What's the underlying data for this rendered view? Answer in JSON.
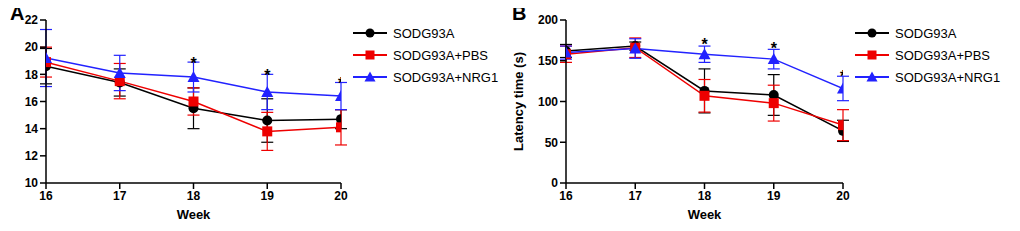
{
  "chart_data": [
    {
      "type": "line",
      "panel": "A",
      "x_label": "Week",
      "x": [
        16,
        17,
        18,
        19,
        20
      ],
      "xlim": [
        16,
        20
      ],
      "xticks": [
        16,
        17,
        18,
        19,
        20
      ],
      "ylim": [
        10,
        22
      ],
      "yticks": [
        10,
        12,
        14,
        16,
        18,
        20,
        22
      ],
      "legend": "right",
      "series": [
        {
          "name": "SODG93A",
          "color": "#000000",
          "marker": "circle",
          "values": [
            18.6,
            17.4,
            15.5,
            14.6,
            14.7
          ],
          "errors": [
            1.3,
            1.0,
            1.5,
            1.6,
            0.7
          ]
        },
        {
          "name": "SODG93A+PBS",
          "color": "#ee0000",
          "marker": "square",
          "values": [
            18.9,
            17.5,
            16.0,
            13.8,
            14.1
          ],
          "errors": [
            1.1,
            1.3,
            1.0,
            1.4,
            1.3
          ]
        },
        {
          "name": "SODG93A+NRG1",
          "color": "#2222ff",
          "marker": "triangle",
          "values": [
            19.2,
            18.1,
            17.8,
            16.7,
            16.4
          ],
          "errors": [
            2.1,
            1.3,
            1.1,
            1.3,
            1.0
          ]
        }
      ],
      "annotations": [
        {
          "x": 18,
          "y": 19.0,
          "text": "*"
        },
        {
          "x": 19,
          "y": 18.1,
          "text": "*"
        },
        {
          "x": 20,
          "y": 17.5,
          "text": "*"
        }
      ]
    },
    {
      "type": "line",
      "panel": "B",
      "x_label": "Week",
      "y_label": "Latency time (s)",
      "x": [
        16,
        17,
        18,
        19,
        20
      ],
      "xlim": [
        16,
        20
      ],
      "xticks": [
        16,
        17,
        18,
        19,
        20
      ],
      "ylim": [
        0,
        200
      ],
      "yticks": [
        0,
        50,
        100,
        150,
        200
      ],
      "legend": "right",
      "series": [
        {
          "name": "SODG93A",
          "color": "#000000",
          "marker": "circle",
          "values": [
            162,
            168,
            113,
            108,
            64
          ],
          "errors": [
            8,
            5,
            27,
            25,
            13
          ]
        },
        {
          "name": "SODG93A+PBS",
          "color": "#ee0000",
          "marker": "square",
          "values": [
            158,
            166,
            107,
            98,
            71
          ],
          "errors": [
            10,
            12,
            20,
            22,
            19
          ]
        },
        {
          "name": "SODG93A+NRG1",
          "color": "#2222ff",
          "marker": "triangle",
          "values": [
            160,
            165,
            158,
            152,
            116
          ],
          "errors": [
            8,
            12,
            10,
            12,
            15
          ]
        }
      ],
      "annotations": [
        {
          "x": 18,
          "y": 173,
          "text": "*"
        },
        {
          "x": 19,
          "y": 168,
          "text": "*"
        },
        {
          "x": 20,
          "y": 134,
          "text": "*"
        }
      ]
    }
  ]
}
